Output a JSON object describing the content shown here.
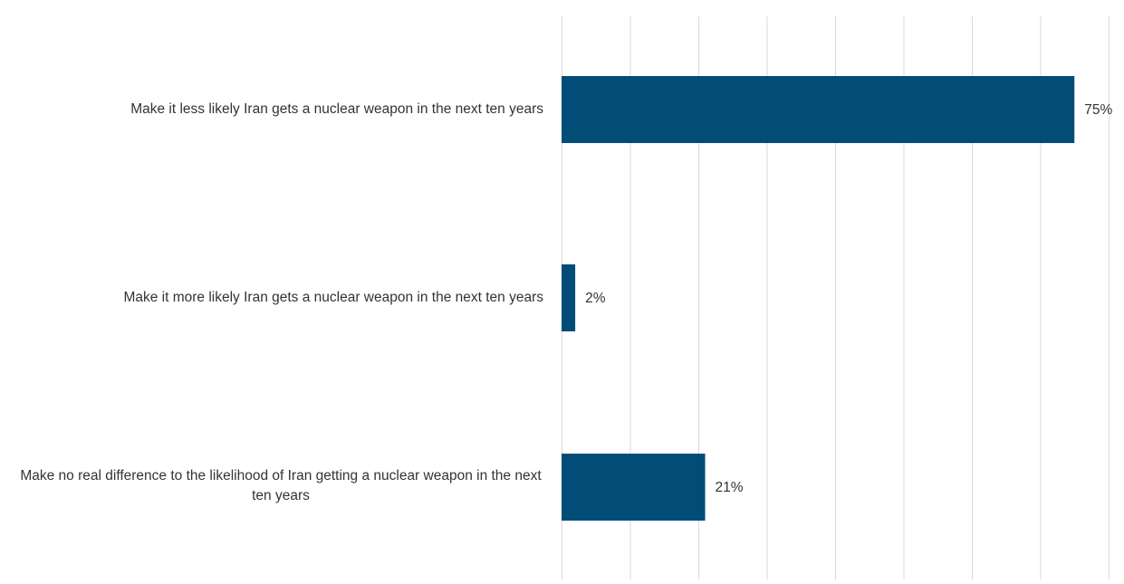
{
  "chart_data": {
    "type": "bar",
    "orientation": "horizontal",
    "title": "",
    "xlabel": "",
    "ylabel": "",
    "categories": [
      "Make it less likely Iran gets a nuclear weapon in the next ten years",
      "Make it more likely Iran gets a nuclear weapon in the next ten years",
      "Make no real difference to the likelihood of Iran getting a nuclear weapon in the next ten years"
    ],
    "values": [
      75,
      2,
      21
    ],
    "value_labels": [
      "75%",
      "2%",
      "21%"
    ],
    "xlim": [
      0,
      80
    ],
    "grid": true,
    "legend": "none",
    "bar_color": "#024d78",
    "grid_color": "#d9d9d9",
    "label_color": "#333333"
  }
}
